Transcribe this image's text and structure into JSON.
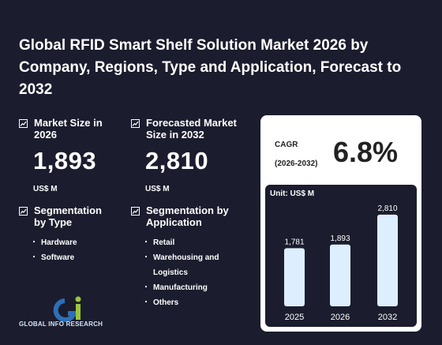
{
  "title": "Global RFID Smart Shelf Solution Market 2026 by Company, Regions, Type and Application, Forecast to 2032",
  "market_size": {
    "label": "Market Size in 2026",
    "value": "1,893",
    "unit": "US$ M"
  },
  "forecast": {
    "label": "Forecasted Market Size in 2032",
    "value": "2,810",
    "unit": "US$ M"
  },
  "seg_type": {
    "label": "Segmentation by Type",
    "items": [
      "Hardware",
      "Software"
    ]
  },
  "seg_app": {
    "label": "Segmentation by Application",
    "items": [
      "Retail",
      "Warehousing and Logistics",
      "Manufacturing",
      "Others"
    ]
  },
  "cagr": {
    "label": "CAGR",
    "period": "(2026-2032)",
    "value": "6.8%"
  },
  "logo": {
    "text": "GLOBAL INFO RESEARCH"
  },
  "colors": {
    "background": "#1b1d2e",
    "bar": "#ddeeff",
    "logo_green": "#9bc53d",
    "logo_blue": "#2d6fb7"
  },
  "chart_data": {
    "type": "bar",
    "unit_label": "Unit: US$ M",
    "categories": [
      "2025",
      "2026",
      "2032"
    ],
    "values": [
      1781,
      1893,
      2810
    ],
    "value_labels": [
      "1,781",
      "1,893",
      "2,810"
    ],
    "ylim": [
      0,
      3000
    ],
    "grid": false,
    "xlabel": "",
    "ylabel": ""
  }
}
